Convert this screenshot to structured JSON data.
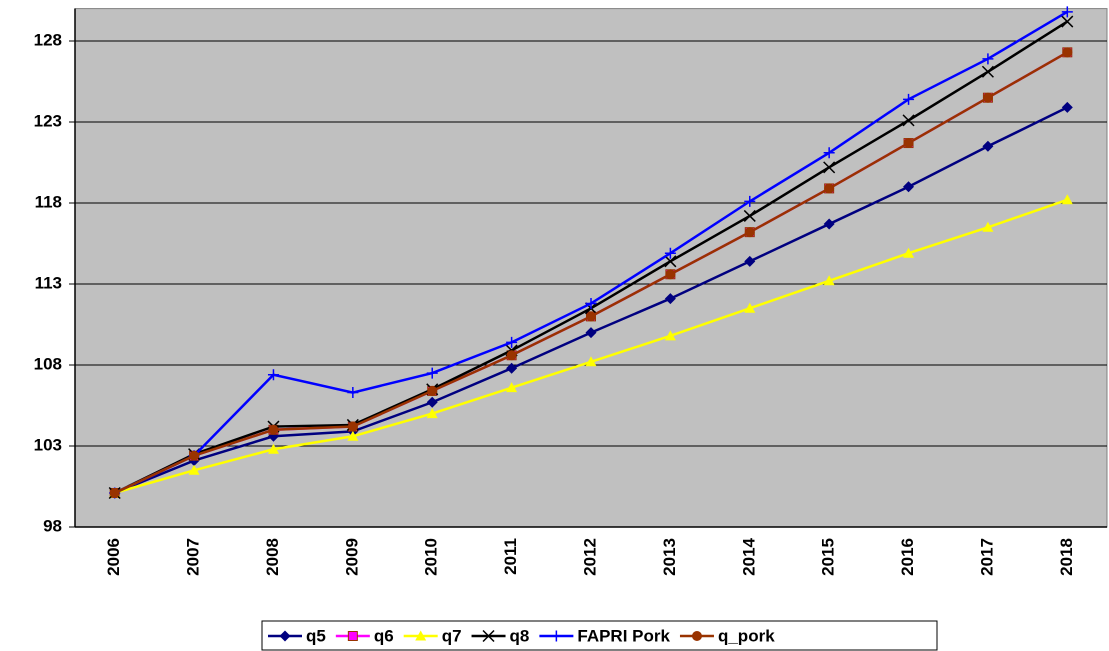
{
  "chart_data": {
    "type": "line",
    "categories": [
      "2006",
      "2007",
      "2008",
      "2009",
      "2010",
      "2011",
      "2012",
      "2013",
      "2014",
      "2015",
      "2016",
      "2017",
      "2018"
    ],
    "series": [
      {
        "name": "q5",
        "color": "#000080",
        "marker": "diamond",
        "values": [
          100.1,
          102.1,
          103.6,
          103.9,
          105.7,
          107.8,
          110.0,
          112.1,
          114.4,
          116.7,
          119.0,
          121.5,
          123.9
        ]
      },
      {
        "name": "q6",
        "color": "#ff00ff",
        "marker": "square",
        "values": [
          100.1,
          102.4,
          104.0,
          104.2,
          106.4,
          108.6,
          111.0,
          113.6,
          116.2,
          118.9,
          121.7,
          124.5,
          127.3
        ]
      },
      {
        "name": "q7",
        "color": "#ffff00",
        "marker": "triangle",
        "values": [
          100.1,
          101.5,
          102.8,
          103.6,
          105.0,
          106.6,
          108.2,
          109.8,
          111.5,
          113.2,
          114.9,
          116.5,
          118.2
        ]
      },
      {
        "name": "q8",
        "color": "#000000",
        "marker": "x",
        "values": [
          100.1,
          102.5,
          104.2,
          104.3,
          106.5,
          108.9,
          111.5,
          114.4,
          117.2,
          120.2,
          123.1,
          126.1,
          129.2
        ]
      },
      {
        "name": "FAPRI Pork",
        "color": "#0000ff",
        "marker": "plus",
        "values": [
          100.1,
          102.4,
          107.4,
          106.3,
          107.5,
          109.4,
          111.8,
          114.9,
          118.1,
          121.1,
          124.4,
          126.9,
          129.8
        ]
      },
      {
        "name": "q_pork",
        "color": "#993300",
        "marker": "circle",
        "values": [
          100.1,
          102.4,
          104.0,
          104.2,
          106.4,
          108.6,
          111.0,
          113.6,
          116.2,
          118.9,
          121.7,
          124.5,
          127.3
        ]
      }
    ],
    "ylim": [
      98,
      130
    ],
    "yticks": [
      98,
      103,
      108,
      113,
      118,
      123,
      128
    ],
    "grid": true,
    "legend": "bottom",
    "plot_background": "#c0c0c0"
  }
}
